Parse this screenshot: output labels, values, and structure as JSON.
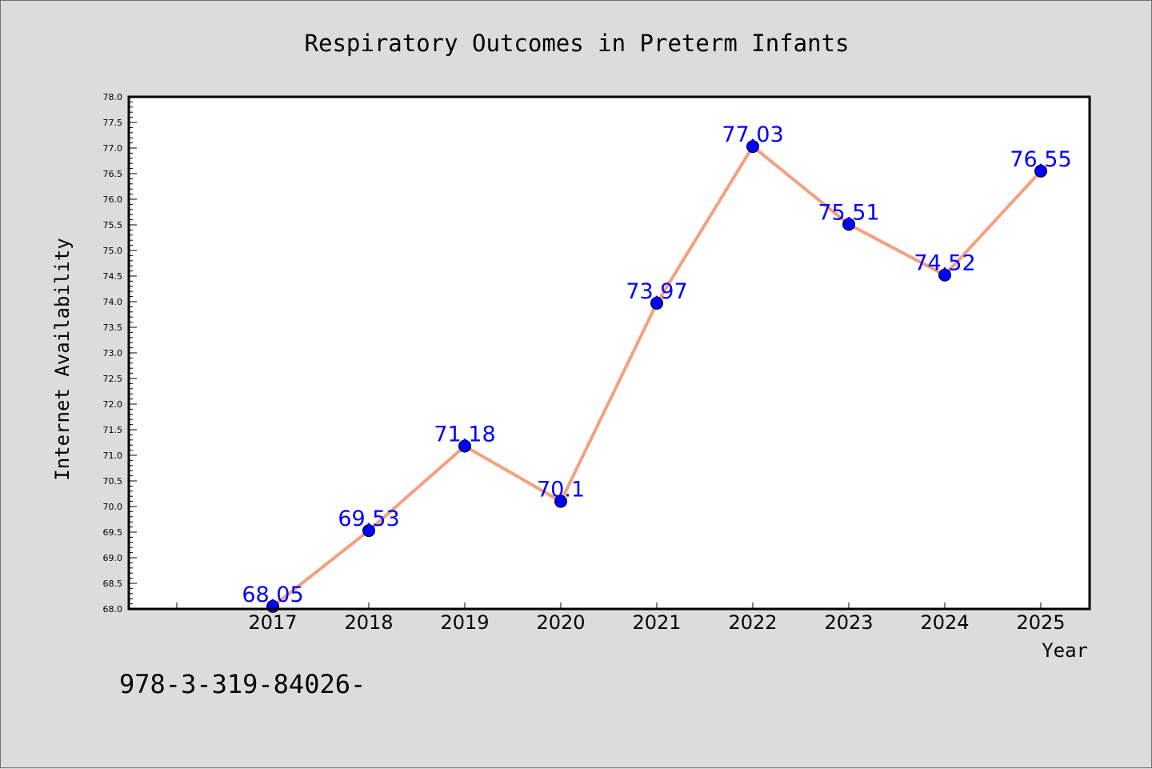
{
  "chart_data": {
    "type": "line",
    "title": "Respiratory Outcomes in Preterm Infants",
    "xlabel": "Year",
    "ylabel": "Internet Availability",
    "categories": [
      "2017",
      "2018",
      "2019",
      "2020",
      "2021",
      "2022",
      "2023",
      "2024",
      "2025"
    ],
    "series": [
      {
        "values": [
          68.05,
          69.53,
          71.18,
          70.1,
          73.97,
          77.03,
          75.51,
          74.52,
          76.55
        ]
      }
    ],
    "data_labels": [
      "68.05",
      "69.53",
      "71.18",
      "70.1",
      "73.97",
      "77.03",
      "75.51",
      "74.52",
      "76.55"
    ],
    "ylim": [
      68.0,
      78.0
    ],
    "yticks": [
      "68.0",
      "68.5",
      "69.0",
      "69.5",
      "70.0",
      "70.5",
      "71.0",
      "71.5",
      "72.0",
      "72.5",
      "73.0",
      "73.5",
      "74.0",
      "74.5",
      "75.0",
      "75.5",
      "76.0",
      "76.5",
      "77.0",
      "77.5",
      "78.0"
    ],
    "grid": false,
    "colors": {
      "line": "#f4a07f",
      "marker": "#0000ff",
      "label": "#0000ff",
      "axes": "#000000",
      "plot_bg": "#ffffff",
      "page_bg": "#dcdcdc"
    }
  },
  "footnote": "978-3-319-84026-"
}
